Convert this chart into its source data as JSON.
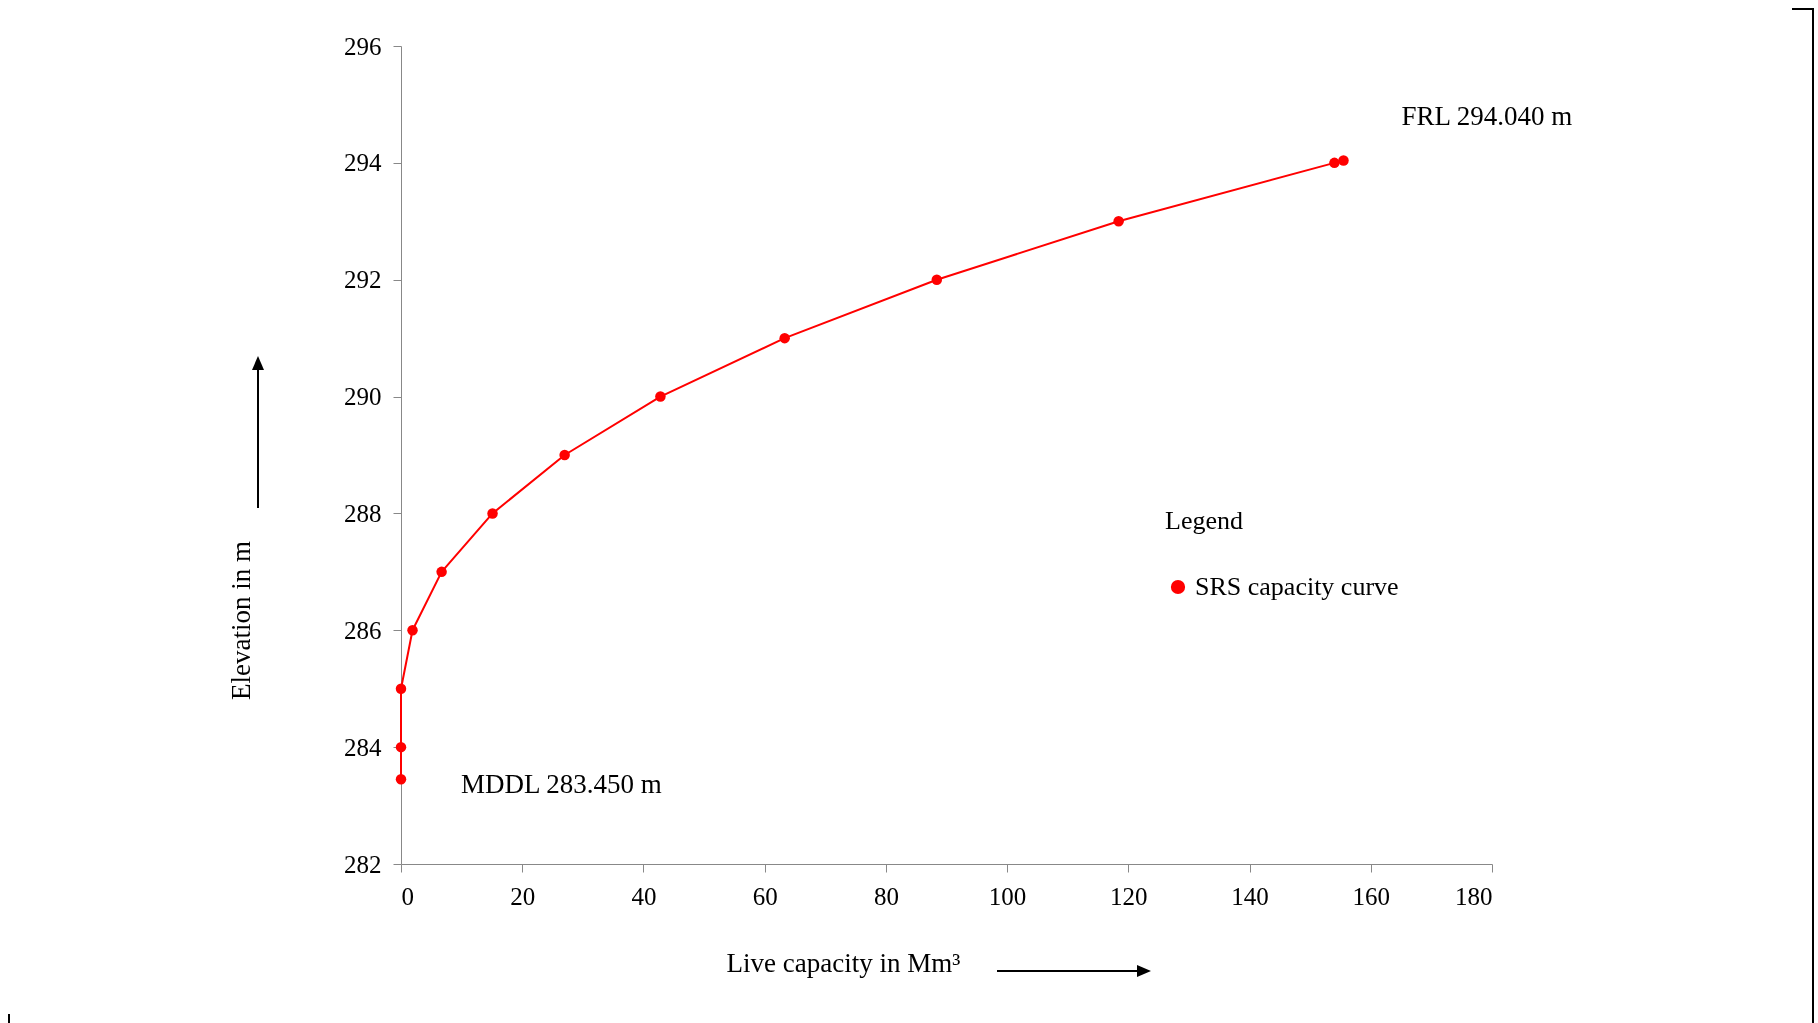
{
  "chart_data": {
    "type": "line",
    "xlabel": "Live capacity in Mm³",
    "ylabel": "Elevation in m",
    "legend_title": "Legend",
    "x": [
      0,
      0,
      0,
      1.9,
      6.7,
      15.1,
      27.0,
      42.8,
      63.3,
      88.4,
      118.4,
      154.0,
      155.5
    ],
    "series": [
      {
        "name": "SRS capacity curve",
        "color": "#ff0000",
        "values": [
          283.45,
          284,
          285,
          286,
          287,
          288,
          289,
          290,
          291,
          292,
          293,
          294,
          294.04
        ]
      }
    ],
    "xlim": [
      0,
      180
    ],
    "xticks": [
      0,
      20,
      40,
      60,
      80,
      100,
      120,
      140,
      160,
      180
    ],
    "ylim": [
      282,
      296
    ],
    "yticks": [
      282,
      284,
      286,
      288,
      290,
      292,
      294,
      296
    ],
    "annotations": [
      {
        "text": "FRL 294.040 m",
        "x": 155.5,
        "y": 294.04
      },
      {
        "text": "MDDL 283.450 m",
        "x": 0,
        "y": 283.45
      }
    ],
    "grid": false,
    "legend": "right",
    "marker": "circle",
    "line_style": "solid"
  }
}
